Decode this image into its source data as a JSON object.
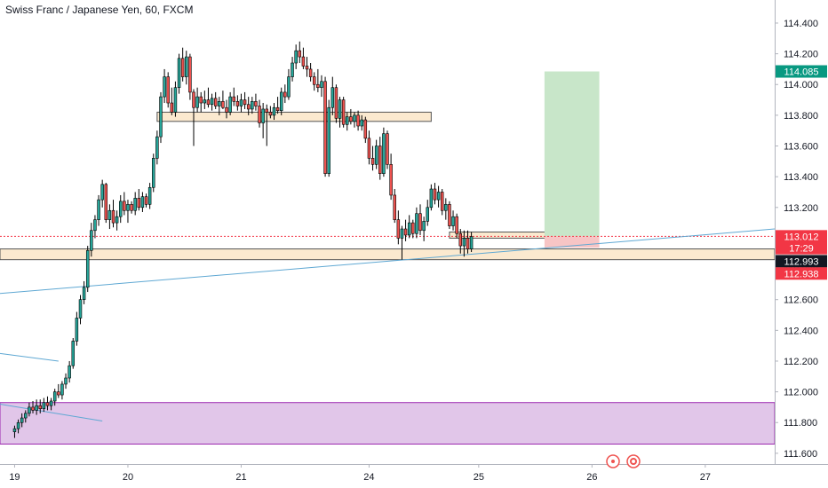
{
  "chart_data": {
    "type": "candlestick",
    "title": "Swiss Franc / Japanese Yen, 60, FXCM",
    "y_ticks": [
      "111.600",
      "111.800",
      "112.000",
      "112.200",
      "112.400",
      "112.600",
      "112.800",
      "113.000",
      "113.200",
      "113.400",
      "113.600",
      "113.800",
      "114.000",
      "114.200",
      "114.400"
    ],
    "ylim": [
      111.53,
      114.55
    ],
    "x_ticks": [
      "19",
      "20",
      "21",
      "24",
      "25",
      "26",
      "27"
    ],
    "x_tick_index": [
      0,
      31,
      62,
      97,
      127,
      158,
      189
    ],
    "xlim": [
      -4,
      208
    ],
    "colors": {
      "up": "#26a69a",
      "down": "#ef5350",
      "wick": "#000000",
      "trend": "#5fa8d3",
      "zone_fill": "#fbe9cf",
      "zone_border": "#555555",
      "demand_fill": "#e1c6e9",
      "demand_border": "#9c27b0",
      "target_fill": "#c8e6c9",
      "stop_fill": "#f7c5c5"
    },
    "price_tags": [
      {
        "label": "114.085",
        "value": 114.085,
        "color": "#089981"
      },
      {
        "label": "113.012",
        "value": 113.012,
        "color": "#f23645"
      },
      {
        "label": "17:29",
        "value": 112.935,
        "color": "#f23645"
      },
      {
        "label": "112.993",
        "value": 112.85,
        "color": "#131722"
      },
      {
        "label": "112.938",
        "value": 112.77,
        "color": "#f23645"
      }
    ],
    "candles": [
      [
        111.74,
        111.78,
        111.7,
        111.76
      ],
      [
        111.76,
        111.82,
        111.73,
        111.8
      ],
      [
        111.8,
        111.86,
        111.77,
        111.83
      ],
      [
        111.83,
        111.88,
        111.8,
        111.86
      ],
      [
        111.86,
        111.93,
        111.84,
        111.9
      ],
      [
        111.9,
        111.94,
        111.86,
        111.88
      ],
      [
        111.88,
        111.95,
        111.85,
        111.91
      ],
      [
        111.91,
        111.95,
        111.86,
        111.89
      ],
      [
        111.89,
        111.96,
        111.87,
        111.93
      ],
      [
        111.93,
        111.97,
        111.88,
        111.91
      ],
      [
        111.91,
        111.96,
        111.88,
        111.94
      ],
      [
        111.94,
        112.02,
        111.91,
        112.0
      ],
      [
        112.0,
        112.05,
        111.96,
        111.98
      ],
      [
        111.98,
        112.07,
        111.95,
        112.05
      ],
      [
        112.05,
        112.12,
        112.02,
        112.09
      ],
      [
        112.09,
        112.2,
        112.06,
        112.17
      ],
      [
        112.17,
        112.35,
        112.15,
        112.33
      ],
      [
        112.33,
        112.52,
        112.3,
        112.48
      ],
      [
        112.48,
        112.63,
        112.44,
        112.6
      ],
      [
        112.6,
        112.72,
        112.57,
        112.68
      ],
      [
        112.68,
        112.95,
        112.65,
        112.92
      ],
      [
        112.92,
        113.1,
        112.88,
        113.05
      ],
      [
        113.05,
        113.15,
        113.0,
        113.12
      ],
      [
        113.12,
        113.28,
        113.08,
        113.25
      ],
      [
        113.25,
        113.38,
        113.2,
        113.35
      ],
      [
        113.35,
        113.36,
        113.1,
        113.12
      ],
      [
        113.12,
        113.22,
        113.06,
        113.18
      ],
      [
        113.18,
        113.25,
        113.07,
        113.1
      ],
      [
        113.1,
        113.18,
        113.05,
        113.14
      ],
      [
        113.14,
        113.28,
        113.1,
        113.24
      ],
      [
        113.24,
        113.3,
        113.15,
        113.18
      ],
      [
        113.18,
        113.25,
        113.1,
        113.22
      ],
      [
        113.22,
        113.24,
        113.16,
        113.18
      ],
      [
        113.18,
        113.3,
        113.15,
        113.26
      ],
      [
        113.26,
        113.32,
        113.18,
        113.2
      ],
      [
        113.2,
        113.3,
        113.17,
        113.27
      ],
      [
        113.27,
        113.29,
        113.2,
        113.22
      ],
      [
        113.22,
        113.36,
        113.19,
        113.33
      ],
      [
        113.33,
        113.55,
        113.3,
        113.52
      ],
      [
        113.52,
        113.7,
        113.48,
        113.66
      ],
      [
        113.66,
        113.95,
        113.62,
        113.92
      ],
      [
        113.92,
        114.1,
        113.88,
        114.05
      ],
      [
        114.05,
        114.08,
        113.85,
        113.88
      ],
      [
        113.88,
        113.98,
        113.8,
        113.82
      ],
      [
        113.82,
        114.02,
        113.79,
        113.98
      ],
      [
        113.98,
        114.2,
        113.94,
        114.17
      ],
      [
        114.17,
        114.24,
        114.02,
        114.05
      ],
      [
        114.05,
        114.22,
        114.0,
        114.18
      ],
      [
        114.18,
        114.2,
        113.9,
        113.95
      ],
      [
        113.95,
        113.97,
        113.6,
        113.85
      ],
      [
        113.85,
        113.98,
        113.82,
        113.92
      ],
      [
        113.92,
        113.95,
        113.82,
        113.88
      ],
      [
        113.88,
        113.96,
        113.84,
        113.9
      ],
      [
        113.9,
        113.98,
        113.85,
        113.87
      ],
      [
        113.87,
        113.94,
        113.83,
        113.91
      ],
      [
        113.91,
        113.95,
        113.84,
        113.86
      ],
      [
        113.86,
        113.92,
        113.8,
        113.89
      ],
      [
        113.89,
        113.96,
        113.84,
        113.85
      ],
      [
        113.85,
        113.9,
        113.78,
        113.82
      ],
      [
        113.82,
        113.95,
        113.8,
        113.92
      ],
      [
        113.92,
        113.98,
        113.86,
        113.89
      ],
      [
        113.89,
        113.93,
        113.83,
        113.86
      ],
      [
        113.86,
        113.94,
        113.82,
        113.9
      ],
      [
        113.9,
        113.95,
        113.84,
        113.87
      ],
      [
        113.87,
        113.92,
        113.8,
        113.84
      ],
      [
        113.84,
        113.92,
        113.81,
        113.89
      ],
      [
        113.89,
        113.94,
        113.83,
        113.86
      ],
      [
        113.86,
        113.9,
        113.72,
        113.75
      ],
      [
        113.75,
        113.88,
        113.65,
        113.84
      ],
      [
        113.84,
        113.87,
        113.6,
        113.82
      ],
      [
        113.82,
        113.86,
        113.78,
        113.8
      ],
      [
        113.8,
        113.88,
        113.77,
        113.85
      ],
      [
        113.85,
        113.92,
        113.81,
        113.83
      ],
      [
        113.83,
        113.98,
        113.8,
        113.95
      ],
      [
        113.95,
        114.0,
        113.88,
        113.92
      ],
      [
        113.92,
        114.1,
        113.9,
        114.05
      ],
      [
        114.05,
        114.18,
        114.02,
        114.14
      ],
      [
        114.14,
        114.26,
        114.1,
        114.22
      ],
      [
        114.22,
        114.28,
        114.14,
        114.18
      ],
      [
        114.18,
        114.24,
        114.1,
        114.12
      ],
      [
        114.12,
        114.18,
        114.05,
        114.1
      ],
      [
        114.1,
        114.14,
        114.02,
        114.05
      ],
      [
        114.05,
        114.08,
        113.96,
        114.0
      ],
      [
        114.0,
        114.1,
        113.95,
        113.98
      ],
      [
        113.98,
        114.06,
        113.92,
        114.02
      ],
      [
        114.02,
        114.05,
        113.4,
        113.42
      ],
      [
        113.42,
        113.9,
        113.4,
        113.85
      ],
      [
        113.85,
        114.05,
        113.8,
        113.98
      ],
      [
        113.98,
        114.0,
        113.75,
        113.78
      ],
      [
        113.78,
        113.92,
        113.72,
        113.9
      ],
      [
        113.9,
        113.92,
        113.72,
        113.74
      ],
      [
        113.74,
        113.82,
        113.7,
        113.79
      ],
      [
        113.79,
        113.84,
        113.74,
        113.76
      ],
      [
        113.76,
        113.82,
        113.72,
        113.8
      ],
      [
        113.8,
        113.83,
        113.7,
        113.73
      ],
      [
        113.73,
        113.8,
        113.7,
        113.77
      ],
      [
        113.77,
        113.79,
        113.62,
        113.65
      ],
      [
        113.65,
        113.7,
        113.48,
        113.52
      ],
      [
        113.52,
        113.6,
        113.44,
        113.48
      ],
      [
        113.48,
        113.64,
        113.45,
        113.6
      ],
      [
        113.6,
        113.66,
        113.38,
        113.42
      ],
      [
        113.42,
        113.72,
        113.4,
        113.68
      ],
      [
        113.68,
        113.7,
        113.45,
        113.48
      ],
      [
        113.48,
        113.55,
        113.25,
        113.28
      ],
      [
        113.28,
        113.32,
        113.1,
        113.12
      ],
      [
        113.12,
        113.18,
        112.96,
        113.0
      ],
      [
        113.0,
        113.08,
        112.86,
        113.06
      ],
      [
        113.06,
        113.12,
        112.98,
        113.02
      ],
      [
        113.02,
        113.15,
        113.0,
        113.1
      ],
      [
        113.1,
        113.12,
        113.0,
        113.03
      ],
      [
        113.03,
        113.2,
        113.0,
        113.16
      ],
      [
        113.16,
        113.22,
        113.02,
        113.05
      ],
      [
        113.05,
        113.14,
        112.98,
        113.11
      ],
      [
        113.11,
        113.25,
        113.08,
        113.2
      ],
      [
        113.2,
        113.35,
        113.18,
        113.32
      ],
      [
        113.32,
        113.36,
        113.22,
        113.25
      ],
      [
        113.25,
        113.34,
        113.2,
        113.3
      ],
      [
        113.3,
        113.32,
        113.15,
        113.18
      ],
      [
        113.18,
        113.26,
        113.12,
        113.22
      ],
      [
        113.22,
        113.24,
        113.06,
        113.08
      ],
      [
        113.08,
        113.18,
        113.05,
        113.14
      ],
      [
        113.14,
        113.16,
        113.0,
        113.03
      ],
      [
        113.03,
        113.06,
        112.9,
        112.95
      ],
      [
        112.95,
        113.05,
        112.88,
        113.0
      ],
      [
        113.0,
        113.05,
        112.9,
        112.93
      ],
      [
        112.93,
        113.04,
        112.91,
        113.01
      ]
    ],
    "horizontal_zones": [
      {
        "y1": 113.82,
        "y2": 113.76,
        "i1": 39,
        "i2": 114
      },
      {
        "y1": 113.04,
        "y2": 113.0,
        "i1": 119,
        "i2": 151
      },
      {
        "y1": 112.93,
        "y2": 112.86,
        "i1": -4,
        "i2": 208
      },
      {
        "y1": 111.93,
        "y2": 111.66,
        "i1": -4,
        "i2": 208
      }
    ],
    "position": {
      "i1": 145,
      "i2": 160,
      "entry": 113.012,
      "target": 114.085,
      "stop": 112.938
    },
    "trend_lines": [
      [
        -4,
        112.64,
        208,
        113.06
      ],
      [
        -4,
        112.25,
        12,
        112.2
      ],
      [
        -4,
        111.92,
        24,
        111.81
      ]
    ]
  }
}
